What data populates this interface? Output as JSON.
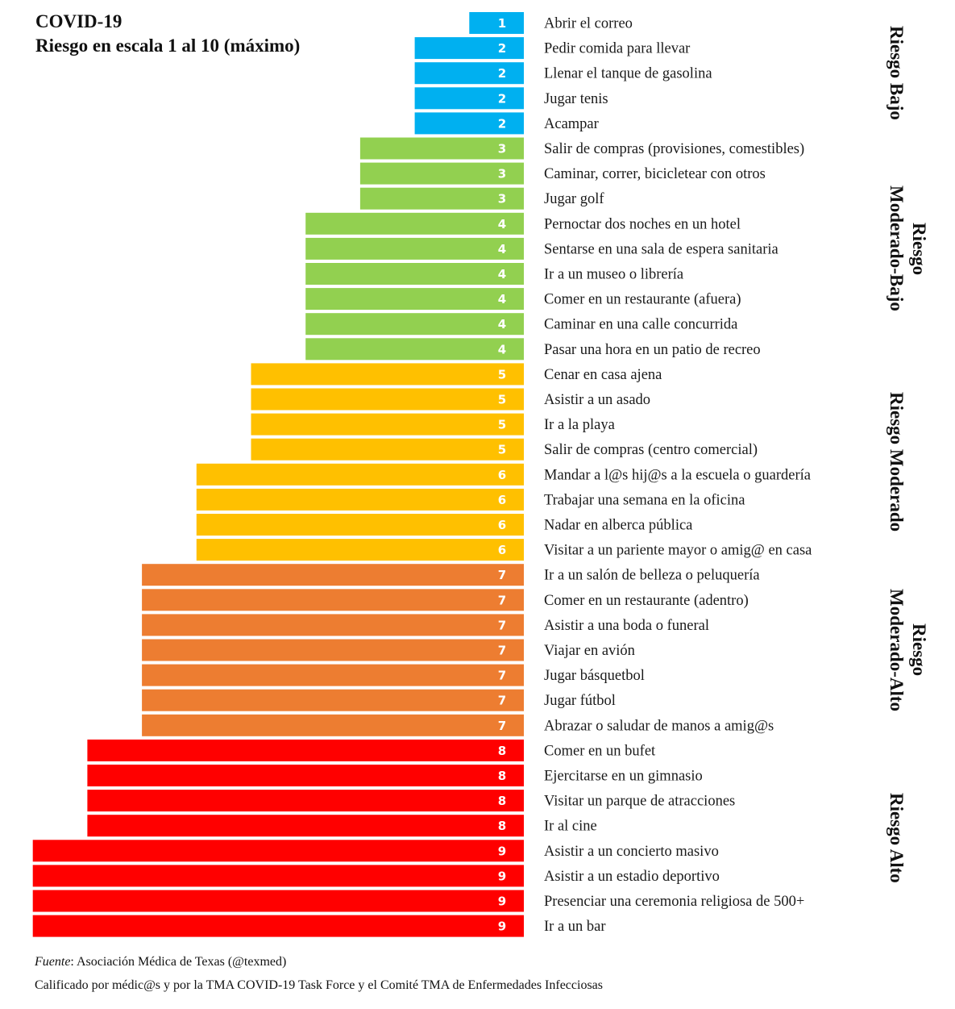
{
  "chart_data": {
    "type": "bar",
    "orientation": "horizontal",
    "title": "COVID-19",
    "subtitle": "Riesgo en escala 1 al 10 (máximo)",
    "xlabel": "",
    "ylabel": "",
    "xlim": [
      0,
      9
    ],
    "grid": false,
    "legend": "none",
    "value_labels": true,
    "colors": {
      "bajo": "#00B0F0",
      "moderado_bajo": "#92D050",
      "moderado": "#FFC000",
      "moderado_alto": "#ED7D31",
      "alto": "#FF0000"
    },
    "categories": [
      "Abrir el correo",
      "Pedir comida para llevar",
      "Llenar el tanque de gasolina",
      "Jugar tenis",
      "Acampar",
      "Salir de compras (provisiones, comestibles)",
      "Caminar, correr, bicicletear con otros",
      "Jugar golf",
      "Pernoctar dos noches en un hotel",
      "Sentarse en una sala de espera sanitaria",
      "Ir a un museo o librería",
      "Comer en un restaurante (afuera)",
      "Caminar en una calle concurrida",
      "Pasar una hora en un patio de recreo",
      "Cenar en casa ajena",
      "Asistir a un asado",
      "Ir a la playa",
      "Salir de compras (centro comercial)",
      "Mandar a l@s hij@s a la escuela o guardería",
      "Trabajar una semana en la oficina",
      "Nadar en alberca pública",
      "Visitar a un pariente mayor o amig@ en casa",
      "Ir a un salón de belleza o peluquería",
      "Comer en un restaurante (adentro)",
      "Asistir a una boda o funeral",
      "Viajar en avión",
      "Jugar básquetbol",
      "Jugar fútbol",
      "Abrazar o saludar de manos a amig@s",
      "Comer en un bufet",
      "Ejercitarse en un gimnasio",
      "Visitar un parque de atracciones",
      "Ir al cine",
      "Asistir a un concierto masivo",
      "Asistir a un estadio deportivo",
      "Presenciar una ceremonia religiosa de 500+",
      "Ir a un bar"
    ],
    "values": [
      1,
      2,
      2,
      2,
      2,
      3,
      3,
      3,
      4,
      4,
      4,
      4,
      4,
      4,
      5,
      5,
      5,
      5,
      6,
      6,
      6,
      6,
      7,
      7,
      7,
      7,
      7,
      7,
      7,
      8,
      8,
      8,
      8,
      9,
      9,
      9,
      9
    ],
    "groups": [
      {
        "name": "Riesgo Bajo",
        "lines": [
          "Riesgo Bajo"
        ],
        "color_key": "bajo",
        "rows": [
          0,
          4
        ]
      },
      {
        "name": "Riesgo Moderado-Bajo",
        "lines": [
          "Riesgo",
          "Moderado-Bajo"
        ],
        "color_key": "moderado_bajo",
        "rows": [
          5,
          13
        ]
      },
      {
        "name": "Riesgo Moderado",
        "lines": [
          "Riesgo Moderado"
        ],
        "color_key": "moderado",
        "rows": [
          14,
          21
        ]
      },
      {
        "name": "Riesgo Moderado-Alto",
        "lines": [
          "Riesgo",
          "Moderado-Alto"
        ],
        "color_key": "moderado_alto",
        "rows": [
          22,
          28
        ]
      },
      {
        "name": "Riesgo Alto",
        "lines": [
          "Riesgo Alto"
        ],
        "color_key": "alto",
        "rows": [
          29,
          36
        ]
      }
    ],
    "value_color_map": {
      "1": "bajo",
      "2": "bajo",
      "3": "moderado_bajo",
      "4": "moderado_bajo",
      "5": "moderado",
      "6": "moderado",
      "7": "moderado_alto",
      "8": "alto",
      "9": "alto"
    }
  },
  "footer": {
    "source_label": "Fuente",
    "source_text": ": Asociación Médica de Texas (@texmed)",
    "credit": "Calificado por médic@s y por la TMA COVID-19 Task Force y el Comité TMA de Enfermedades Infecciosas"
  }
}
